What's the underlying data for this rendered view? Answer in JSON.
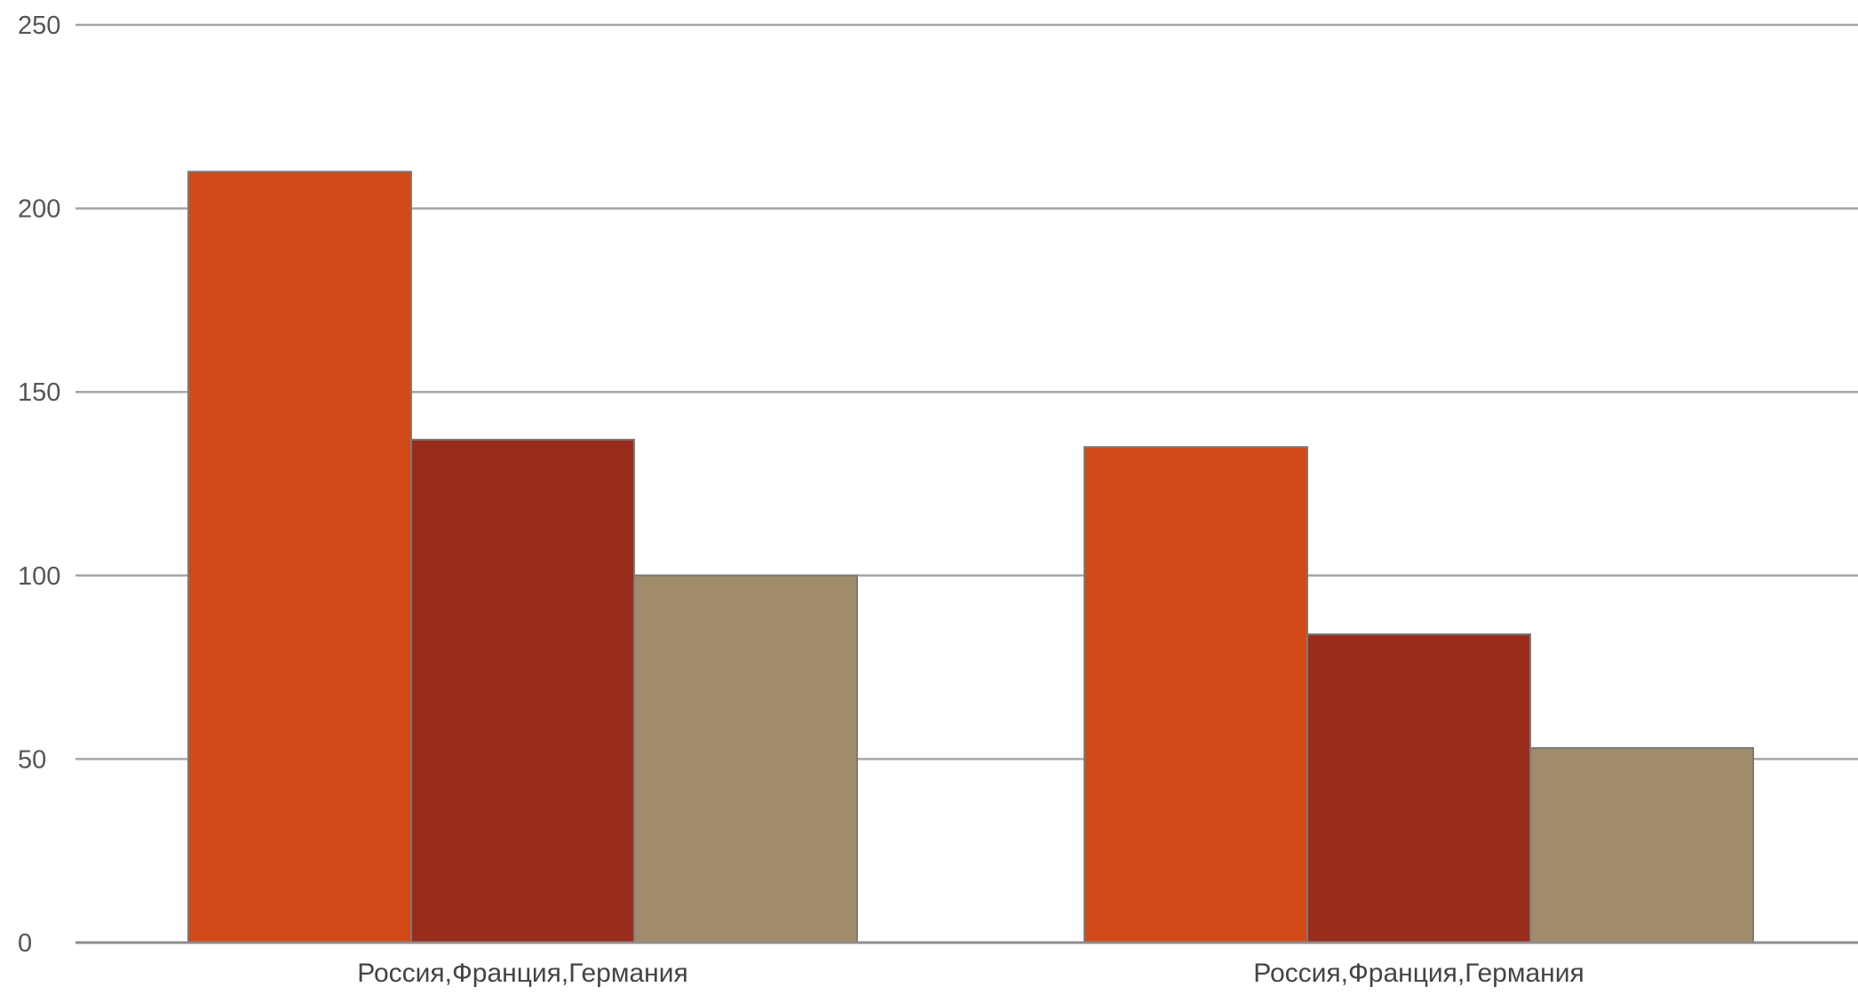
{
  "chart_data": {
    "type": "bar",
    "title": "",
    "xlabel": "",
    "ylabel": "",
    "ylim": [
      0,
      250
    ],
    "yticks": [
      "0",
      "50",
      "100",
      "150",
      "200",
      "250"
    ],
    "grid": true,
    "categories": [
      "Россия,Франция,Германия",
      "Россия,Франция,Германия"
    ],
    "series": [
      {
        "color": "#d14a18",
        "values": [
          210,
          135
        ]
      },
      {
        "color": "#992b1d",
        "values": [
          137,
          84
        ]
      },
      {
        "color": "#a08c6a",
        "values": [
          100,
          53
        ]
      }
    ]
  }
}
